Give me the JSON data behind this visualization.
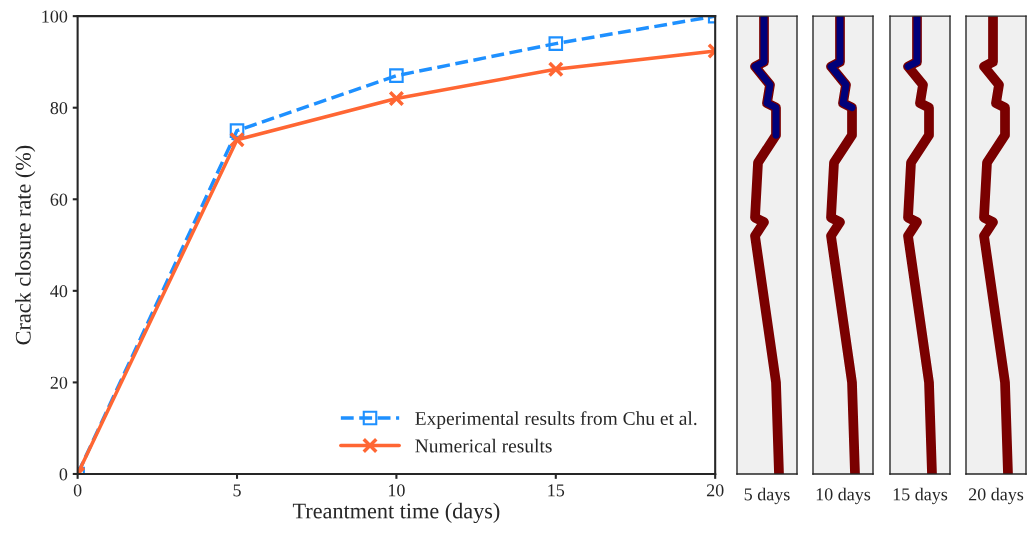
{
  "chart_data": {
    "type": "line",
    "xlabel": "Treantment time (days)",
    "ylabel": "Crack closure rate (%)",
    "x": [
      0,
      5,
      10,
      15,
      20
    ],
    "series": [
      {
        "name": "Experimental results from Chu et al.",
        "color": "#1e90ff",
        "values": [
          0,
          75,
          87,
          94,
          100
        ],
        "marker": "square",
        "line_style": "dashed"
      },
      {
        "name": "Numerical results",
        "color": "#ff6633",
        "values": [
          0,
          73,
          82,
          88.4,
          92.4
        ],
        "marker": "cross",
        "line_style": "solid"
      }
    ],
    "xlim": [
      0,
      20
    ],
    "xticks": [
      0,
      5,
      10,
      15,
      20
    ],
    "ylim": [
      0,
      100
    ],
    "yticks": [
      0,
      20,
      40,
      60,
      80,
      100
    ],
    "grid": false,
    "legend": "bottom right",
    "annotations": [
      "5 days",
      "10 days",
      "15 days",
      "20 days"
    ]
  }
}
